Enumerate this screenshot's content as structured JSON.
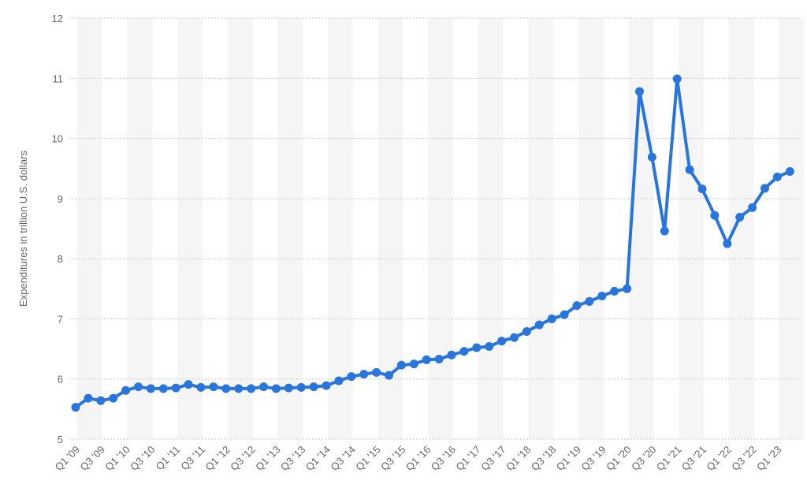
{
  "chart_data": {
    "type": "line",
    "y_label": "Expenditures in trillion U.S. dollars",
    "categories": [
      "Q1 '09",
      null,
      "Q3 '09",
      null,
      "Q1 '10",
      null,
      "Q3 '10",
      null,
      "Q1 '11",
      null,
      "Q3 '11",
      null,
      "Q1 '12",
      null,
      "Q3 '12",
      null,
      "Q1 '13",
      null,
      "Q3 '13",
      null,
      "Q1 '14",
      null,
      "Q3 '14",
      null,
      "Q1 '15",
      null,
      "Q3 '15",
      null,
      "Q1 '16",
      null,
      "Q3 '16",
      null,
      "Q1 '17",
      null,
      "Q3 '17",
      null,
      "Q1 '18",
      null,
      "Q3 '18",
      null,
      "Q1 '19",
      null,
      "Q3 '19",
      null,
      "Q1 '20",
      null,
      "Q3 '20",
      null,
      "Q1 '21",
      null,
      "Q3 '21",
      null,
      "Q1 '22",
      null,
      "Q3 '22",
      null,
      "Q1 '23",
      null
    ],
    "values": [
      5.53,
      5.68,
      5.64,
      5.68,
      5.81,
      5.87,
      5.84,
      5.84,
      5.85,
      5.91,
      5.86,
      5.87,
      5.84,
      5.84,
      5.84,
      5.87,
      5.84,
      5.85,
      5.86,
      5.87,
      5.89,
      5.97,
      6.04,
      6.08,
      6.11,
      6.06,
      6.23,
      6.25,
      6.32,
      6.33,
      6.4,
      6.46,
      6.52,
      6.54,
      6.63,
      6.69,
      6.79,
      6.9,
      7.0,
      7.07,
      7.22,
      7.29,
      7.38,
      7.46,
      7.5,
      10.78,
      9.69,
      8.46,
      10.99,
      9.48,
      9.16,
      8.72,
      8.25,
      8.69,
      8.85,
      9.17,
      9.36,
      9.45
    ],
    "color": "#2876dd",
    "ylim": [
      5,
      12
    ],
    "yticks": [
      5,
      6,
      7,
      8,
      9,
      10,
      11,
      12
    ],
    "grid": true
  }
}
